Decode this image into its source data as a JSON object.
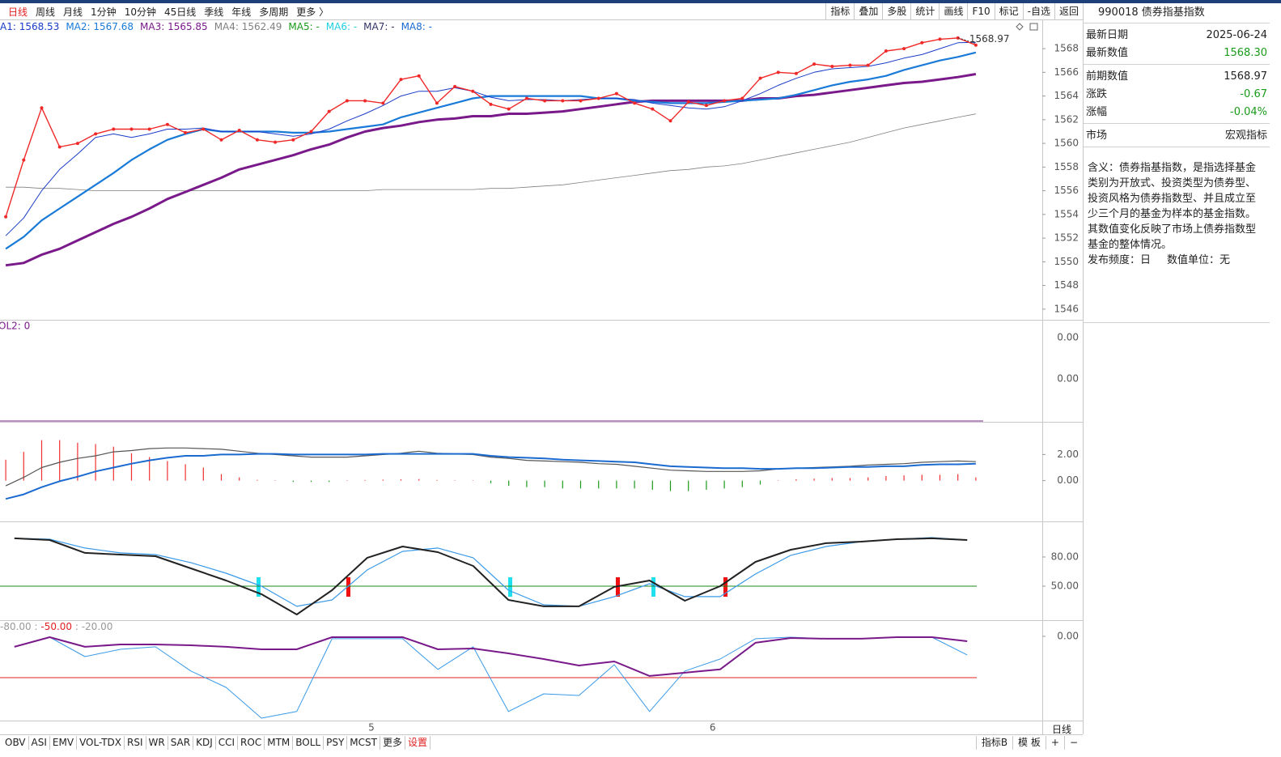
{
  "toolbar": {
    "periods": [
      "日线",
      "周线",
      "月线",
      "1分钟",
      "10分钟",
      "45日线",
      "季线",
      "年线",
      "多周期",
      "更多 〉"
    ],
    "tools": [
      "指标",
      "叠加",
      "多股",
      "统计",
      "画线",
      "F10",
      "标记",
      "-自选",
      "返回"
    ]
  },
  "ma_legend": [
    {
      "text": "A1: 1568.53",
      "color": "#1a3cc8"
    },
    {
      "text": "MA2: 1567.68",
      "color": "#1a7ad8"
    },
    {
      "text": "MA3: 1565.85",
      "color": "#7a1a8a"
    },
    {
      "text": "MA4: 1562.49",
      "color": "#808080"
    },
    {
      "text": "MA5: -",
      "color": "#1a9a1a"
    },
    {
      "text": "MA6: -",
      "color": "#20d0e0"
    },
    {
      "text": "MA7: -",
      "color": "#333366"
    },
    {
      "text": "MA8: -",
      "color": "#1a6ad0"
    }
  ],
  "vol_panel": {
    "legend": "OL2: 0",
    "axis_labels": [
      "0.00",
      "0.00"
    ]
  },
  "wr_legend": [
    {
      "text": "-80.00",
      "color": "#999999"
    },
    {
      "text": " : ",
      "color": "#999999"
    },
    {
      "text": "-50.00",
      "color": "#e02020"
    },
    {
      "text": " : -20.00",
      "color": "#999999"
    }
  ],
  "chart_data": [
    {
      "type": "line",
      "categories": [
        null,
        null,
        null,
        null,
        null,
        null,
        null,
        null,
        null,
        null,
        null,
        null,
        null,
        null,
        null,
        null,
        null,
        null,
        null,
        null,
        "5",
        null,
        null,
        null,
        null,
        null,
        null,
        null,
        null,
        null,
        null,
        null,
        null,
        null,
        null,
        null,
        null,
        null,
        null,
        "6",
        null,
        null,
        null,
        null,
        null,
        null,
        null,
        null,
        null,
        null,
        null,
        null,
        null,
        null,
        null
      ],
      "ylim": [
        1545.1,
        1570.4
      ],
      "yticks": [
        1546,
        1548,
        1550,
        1552,
        1554,
        1556,
        1558,
        1560,
        1562,
        1564,
        1566,
        1568
      ],
      "annotation": "1568.97",
      "series": [
        {
          "color": "#808080",
          "line_width": 0.8,
          "values": [
            1556.3,
            1556.3,
            1556.2,
            1556.2,
            1556.1,
            1556.0,
            1556.0,
            1556.0,
            1556.0,
            1556.0,
            1556.0,
            1556.0,
            1556.0,
            1556.0,
            1556.0,
            1556.0,
            1556.0,
            1556.0,
            1556.0,
            1556.0,
            1556.0,
            1556.1,
            1556.1,
            1556.1,
            1556.1,
            1556.1,
            1556.1,
            1556.2,
            1556.2,
            1556.3,
            1556.4,
            1556.5,
            1556.7,
            1556.9,
            1557.1,
            1557.3,
            1557.5,
            1557.7,
            1557.8,
            1558.0,
            1558.1,
            1558.3,
            1558.6,
            1558.9,
            1559.2,
            1559.5,
            1559.8,
            1560.1,
            1560.5,
            1560.9,
            1561.3,
            1561.6,
            1561.9,
            1562.2,
            1562.49
          ]
        },
        {
          "color": "#7a1a8a",
          "line_width": 3,
          "values": [
            1549.7,
            1549.9,
            1550.6,
            1551.1,
            1551.8,
            1552.5,
            1553.2,
            1553.8,
            1554.5,
            1555.3,
            1555.9,
            1556.5,
            1557.1,
            1557.8,
            1558.2,
            1558.6,
            1559.0,
            1559.5,
            1559.9,
            1560.5,
            1561.0,
            1561.3,
            1561.5,
            1561.8,
            1562.0,
            1562.1,
            1562.3,
            1562.3,
            1562.5,
            1562.5,
            1562.6,
            1562.7,
            1562.9,
            1563.1,
            1563.3,
            1563.5,
            1563.6,
            1563.6,
            1563.6,
            1563.6,
            1563.6,
            1563.6,
            1563.8,
            1563.8,
            1564.0,
            1564.1,
            1564.3,
            1564.5,
            1564.7,
            1564.9,
            1565.1,
            1565.2,
            1565.4,
            1565.6,
            1565.85
          ]
        },
        {
          "color": "#1a7ad8",
          "line_width": 2.2,
          "values": [
            1551.1,
            1552.1,
            1553.5,
            1554.5,
            1555.5,
            1556.5,
            1557.5,
            1558.6,
            1559.5,
            1560.3,
            1560.8,
            1561.2,
            1561.0,
            1561.0,
            1561.0,
            1561.0,
            1560.9,
            1560.9,
            1561.0,
            1561.2,
            1561.4,
            1561.6,
            1562.2,
            1562.6,
            1563.0,
            1563.4,
            1563.8,
            1564.0,
            1564.0,
            1564.0,
            1564.0,
            1564.0,
            1564.0,
            1563.8,
            1563.8,
            1563.6,
            1563.5,
            1563.4,
            1563.4,
            1563.4,
            1563.5,
            1563.6,
            1563.7,
            1563.8,
            1564.1,
            1564.5,
            1564.9,
            1565.2,
            1565.4,
            1565.7,
            1566.2,
            1566.6,
            1567.0,
            1567.3,
            1567.68
          ]
        },
        {
          "color": "#1a3cc8",
          "line_width": 1,
          "values": [
            1552.2,
            1553.7,
            1556.0,
            1557.8,
            1559.1,
            1560.5,
            1560.8,
            1560.5,
            1560.8,
            1561.2,
            1561.2,
            1561.3,
            1561.0,
            1561.0,
            1561.0,
            1560.8,
            1560.6,
            1560.8,
            1561.2,
            1561.9,
            1562.5,
            1563.2,
            1564.0,
            1564.4,
            1564.4,
            1564.7,
            1564.4,
            1563.9,
            1563.6,
            1563.7,
            1563.7,
            1563.6,
            1563.7,
            1563.8,
            1563.8,
            1563.7,
            1563.4,
            1563.2,
            1563.0,
            1562.9,
            1563.1,
            1563.6,
            1564.2,
            1564.9,
            1565.5,
            1566.0,
            1566.3,
            1566.4,
            1566.5,
            1566.8,
            1567.2,
            1567.5,
            1568.0,
            1568.5,
            1568.53
          ]
        },
        {
          "color": "#f02828",
          "line_width": 1.4,
          "markers": true,
          "values": [
            1553.8,
            1558.6,
            1563.0,
            1559.7,
            1560.0,
            1560.8,
            1561.2,
            1561.2,
            1561.2,
            1561.6,
            1560.9,
            1561.2,
            1560.3,
            1561.1,
            1560.3,
            1560.1,
            1560.3,
            1561.0,
            1562.7,
            1563.6,
            1563.6,
            1563.4,
            1565.4,
            1565.7,
            1563.4,
            1564.8,
            1564.4,
            1563.3,
            1562.9,
            1563.8,
            1563.6,
            1563.6,
            1563.6,
            1563.8,
            1564.2,
            1563.4,
            1562.9,
            1561.9,
            1563.5,
            1563.2,
            1563.6,
            1563.8,
            1565.5,
            1566.0,
            1565.9,
            1566.7,
            1566.5,
            1566.6,
            1566.6,
            1567.8,
            1568.0,
            1568.5,
            1568.8,
            1568.9,
            1568.3
          ]
        }
      ]
    },
    {
      "type": "bar",
      "categories": [
        null,
        null,
        null,
        null,
        null,
        null,
        null,
        null,
        null,
        null,
        null,
        null,
        null,
        null,
        null,
        null,
        null,
        null,
        null,
        null,
        null,
        null,
        null,
        null,
        null,
        null,
        null,
        null,
        null,
        null,
        null,
        null,
        null,
        null,
        null,
        null,
        null,
        null,
        null,
        null,
        null,
        null,
        null,
        null,
        null,
        null,
        null,
        null,
        null,
        null,
        null,
        null,
        null,
        null,
        null
      ],
      "ylim": [
        -3.06,
        4.44
      ],
      "yticks": [
        {
          "value": 0,
          "label": "0.00"
        },
        {
          "value": 2,
          "label": "2.00"
        }
      ],
      "values": [
        1.6,
        2.2,
        3.1,
        3.1,
        2.9,
        2.8,
        2.6,
        2.1,
        1.8,
        1.5,
        1.25,
        1.0,
        0.5,
        0.25,
        0.06,
        0.02,
        -0.1,
        -0.1,
        -0.1,
        0.02,
        0.05,
        0.08,
        0.1,
        0.12,
        0.05,
        0.03,
        0.02,
        -0.2,
        -0.4,
        -0.5,
        -0.5,
        -0.6,
        -0.6,
        -0.6,
        -0.6,
        -0.6,
        -0.7,
        -0.8,
        -0.8,
        -0.7,
        -0.6,
        -0.5,
        -0.3,
        0.02,
        0.1,
        0.15,
        0.2,
        0.2,
        0.25,
        0.35,
        0.4,
        0.45,
        0.45,
        0.5,
        0.25
      ],
      "up_color": "#f03030",
      "down_color": "#1a9a1a",
      "series": [
        {
          "color": "#555555",
          "line_width": 1.2,
          "values": [
            -0.4,
            0.25,
            1.0,
            1.4,
            1.7,
            1.9,
            2.2,
            2.3,
            2.45,
            2.5,
            2.5,
            2.45,
            2.4,
            2.25,
            2.1,
            2.0,
            1.9,
            1.8,
            1.8,
            1.8,
            1.9,
            2.0,
            2.1,
            2.25,
            2.1,
            2.05,
            2.0,
            1.8,
            1.7,
            1.55,
            1.5,
            1.45,
            1.4,
            1.3,
            1.25,
            1.1,
            0.95,
            0.8,
            0.75,
            0.7,
            0.7,
            0.7,
            0.75,
            0.9,
            0.95,
            1.0,
            1.05,
            1.1,
            1.2,
            1.25,
            1.3,
            1.4,
            1.45,
            1.5,
            1.45
          ]
        },
        {
          "color": "#1a6ad0",
          "line_width": 2,
          "values": [
            -1.4,
            -1.05,
            -0.5,
            -0.05,
            0.3,
            0.7,
            1.0,
            1.3,
            1.55,
            1.75,
            1.9,
            1.9,
            2.0,
            2.0,
            2.05,
            2.05,
            2.0,
            2.0,
            2.0,
            2.0,
            2.0,
            2.05,
            2.05,
            2.05,
            2.05,
            2.05,
            2.05,
            1.9,
            1.8,
            1.75,
            1.7,
            1.6,
            1.55,
            1.5,
            1.45,
            1.4,
            1.25,
            1.1,
            1.05,
            1.0,
            0.95,
            0.95,
            0.9,
            0.9,
            0.95,
            0.95,
            1.0,
            1.05,
            1.05,
            1.1,
            1.1,
            1.2,
            1.25,
            1.25,
            1.3
          ]
        }
      ]
    },
    {
      "type": "line",
      "categories": [
        null,
        null,
        null,
        null,
        null,
        null,
        null,
        null,
        null,
        null,
        null,
        null,
        null,
        null,
        null,
        null,
        null,
        null,
        null,
        null,
        null,
        null,
        null,
        null,
        null,
        null,
        null,
        null
      ],
      "ylim": [
        15.8,
        115.8
      ],
      "yticks": [
        {
          "value": 50,
          "label": "50.00"
        },
        {
          "value": 80,
          "label": "80.00"
        }
      ],
      "ref_line": 50,
      "ref_color": "#1a8a1a",
      "series": [
        {
          "color": "#3a9ae8",
          "line_width": 1.2,
          "values": [
            99.2,
            98.3,
            89.2,
            84.2,
            82.5,
            74.2,
            63.3,
            50,
            29.2,
            35.8,
            66.7,
            85.8,
            89.2,
            79.2,
            45.8,
            30.8,
            29.2,
            39.2,
            52.5,
            39.2,
            39.2,
            62.5,
            81.7,
            90.8,
            95.8,
            98.3,
            100,
            97.5
          ]
        },
        {
          "color": "#222222",
          "line_width": 2,
          "values": [
            99.2,
            97.5,
            84.2,
            82.5,
            80.8,
            68.3,
            55.8,
            41.7,
            20.8,
            45.8,
            79.2,
            90.8,
            85,
            70.8,
            35.8,
            29.2,
            29.2,
            49.2,
            55.8,
            35,
            50,
            75,
            87.5,
            94.2,
            95.8,
            98.3,
            99.2,
            97.5
          ]
        }
      ]
    },
    {
      "type": "line",
      "categories": [
        null,
        null,
        null,
        null,
        null,
        null,
        null,
        null,
        null,
        null,
        null,
        null,
        null,
        null,
        null,
        null,
        null,
        null,
        null,
        null,
        null,
        null,
        null,
        null,
        null,
        null,
        null,
        null
      ],
      "ylim": [
        -101,
        18.6
      ],
      "yticks": [
        {
          "value": 0,
          "label": "0.00"
        }
      ],
      "ref_line": -50,
      "ref_color": "#e02020",
      "series": [
        {
          "color": "#3a9ae8",
          "line_width": 1,
          "values": [
            -12.7,
            -1,
            -24.5,
            -15.7,
            -12.7,
            -42,
            -61.8,
            -99,
            -91,
            -2.9,
            -2.9,
            -2.9,
            -40,
            -12.7,
            -91,
            -69.6,
            -71.6,
            -34.3,
            -91,
            -42,
            -27.5,
            -2.9,
            -1,
            -2.9,
            -2.9,
            -1,
            -1,
            -22.5
          ]
        },
        {
          "color": "#7a1a8a",
          "line_width": 2,
          "values": [
            -12.7,
            -1,
            -12.7,
            -9.8,
            -9.8,
            -10.8,
            -12.7,
            -15.7,
            -15.7,
            -1,
            -1,
            -1,
            -15.7,
            -14.7,
            -20.6,
            -27.5,
            -35.3,
            -30.4,
            -48,
            -44,
            -40,
            -7.8,
            -2,
            -2.9,
            -2.9,
            -1,
            -1,
            -5.9
          ]
        }
      ]
    }
  ],
  "period_label": "日线",
  "indicator_tabs": [
    "OBV",
    "ASI",
    "EMV",
    "VOL-TDX",
    "RSI",
    "WR",
    "SAR",
    "KDJ",
    "CCI",
    "ROC",
    "MTM",
    "BOLL",
    "PSY",
    "MCST",
    "更多",
    "设置"
  ],
  "tabs_right": [
    "指标B",
    "模 板",
    "+",
    "−"
  ],
  "info": {
    "title": "990018 债券指基指数",
    "rows": [
      [
        "最新日期",
        "2025-06-24"
      ],
      [
        "最新数值",
        "1568.30"
      ],
      [
        "前期数值",
        "1568.97"
      ],
      [
        "涨跌",
        "-0.67"
      ],
      [
        "涨幅",
        "-0.04%"
      ],
      [
        "市场",
        "宏观指标"
      ]
    ],
    "description": "含义：债券指基指数，是指选择基金类别为开放式、投资类型为债券型、投资风格为债券指数型、并且成立至少三个月的基金为样本的基金指数。其数值变化反映了市场上债券指数型基金的整体情况。",
    "frequency": "发布频度：日",
    "unit": "数值单位：无"
  }
}
